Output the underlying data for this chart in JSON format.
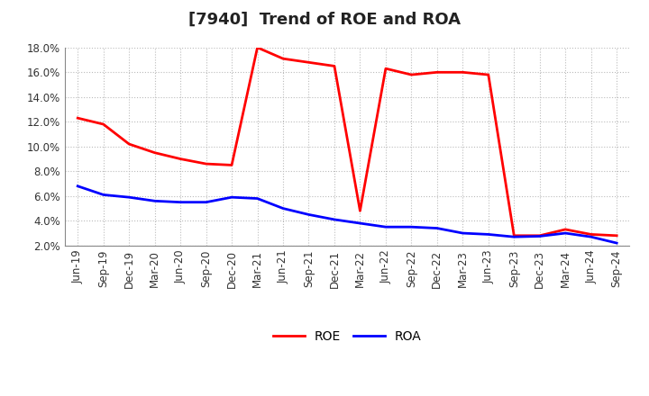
{
  "title": "[7940]  Trend of ROE and ROA",
  "x_labels": [
    "Jun-19",
    "Sep-19",
    "Dec-19",
    "Mar-20",
    "Jun-20",
    "Sep-20",
    "Dec-20",
    "Mar-21",
    "Jun-21",
    "Sep-21",
    "Dec-21",
    "Mar-22",
    "Jun-22",
    "Sep-22",
    "Dec-22",
    "Mar-23",
    "Jun-23",
    "Sep-23",
    "Dec-23",
    "Mar-24",
    "Jun-24",
    "Sep-24"
  ],
  "roe": [
    12.3,
    11.8,
    10.2,
    9.5,
    9.0,
    8.6,
    8.5,
    18.0,
    17.1,
    16.8,
    16.5,
    4.8,
    16.3,
    15.8,
    16.0,
    16.0,
    15.8,
    2.8,
    2.8,
    3.3,
    2.9,
    2.8
  ],
  "roa": [
    6.8,
    6.1,
    5.9,
    5.6,
    5.5,
    5.5,
    5.9,
    5.8,
    5.0,
    4.5,
    4.1,
    3.8,
    3.5,
    3.5,
    3.4,
    3.0,
    2.9,
    2.7,
    2.75,
    3.0,
    2.7,
    2.2
  ],
  "roe_color": "#ff0000",
  "roa_color": "#0000ff",
  "ylim": [
    2.0,
    18.0
  ],
  "yticks": [
    2.0,
    4.0,
    6.0,
    8.0,
    10.0,
    12.0,
    14.0,
    16.0,
    18.0
  ],
  "bg_color": "#ffffff",
  "grid_color": "#bbbbbb",
  "title_fontsize": 13,
  "axis_fontsize": 8.5,
  "legend_fontsize": 10,
  "linewidth": 2.0
}
